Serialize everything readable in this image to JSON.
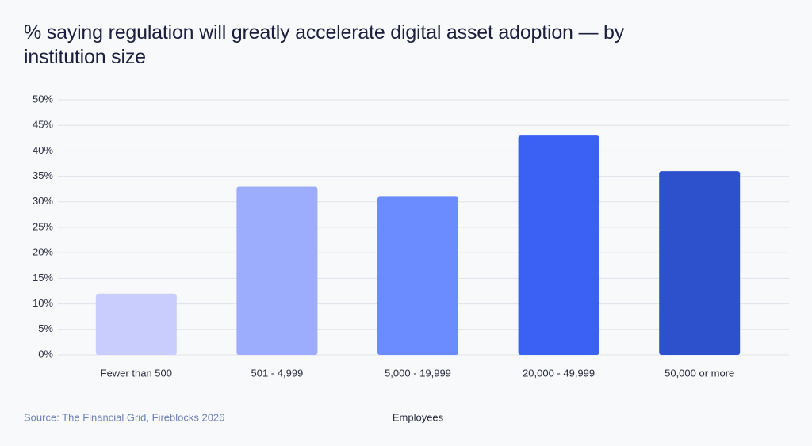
{
  "chart_data": {
    "type": "bar",
    "title": "% saying regulation will greatly accelerate digital asset adoption — by institution size",
    "xlabel": "Employees",
    "source": "Source: The Financial Grid, Fireblocks 2026",
    "categories": [
      "Fewer than 500",
      "501 - 4,999",
      "5,000 - 19,999",
      "20,000 - 49,999",
      "50,000 or more"
    ],
    "values": [
      12,
      33,
      31,
      43,
      36
    ],
    "colors": [
      "#c8cdfd",
      "#9badfc",
      "#6a8cfe",
      "#3a61f4",
      "#2d50cc"
    ],
    "ylim": [
      0,
      50
    ],
    "yticks": [
      {
        "value": 0,
        "label": "0%"
      },
      {
        "value": 5,
        "label": "5%"
      },
      {
        "value": 10,
        "label": "10%"
      },
      {
        "value": 15,
        "label": "15%"
      },
      {
        "value": 20,
        "label": "20%"
      },
      {
        "value": 25,
        "label": "25%"
      },
      {
        "value": 30,
        "label": "30%"
      },
      {
        "value": 35,
        "label": "35%"
      },
      {
        "value": 40,
        "label": "40%"
      },
      {
        "value": 45,
        "label": "45%"
      },
      {
        "value": 50,
        "label": "50%"
      }
    ],
    "grid": true
  }
}
